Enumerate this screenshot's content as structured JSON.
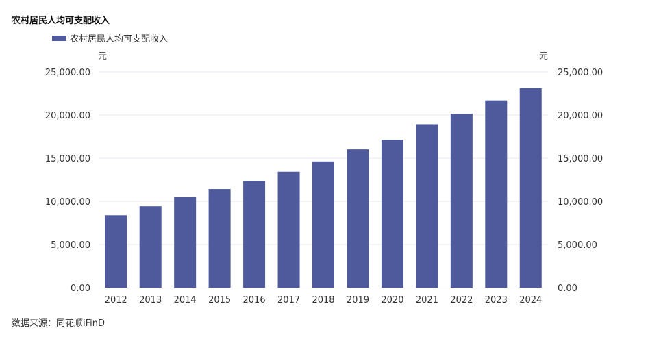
{
  "title": "农村居民人均可支配收入",
  "source": "数据来源：同花顺iFinD",
  "chart_data": {
    "type": "bar",
    "title": "农村居民人均可支配收入",
    "legend": [
      "农村居民人均可支配收入"
    ],
    "legend_position": "top-left",
    "ylabel_left": "元",
    "ylabel_right": "元",
    "categories": [
      "2012",
      "2013",
      "2014",
      "2015",
      "2016",
      "2017",
      "2018",
      "2019",
      "2020",
      "2021",
      "2022",
      "2023",
      "2024"
    ],
    "series": [
      {
        "name": "农村居民人均可支配收入",
        "color": "#4e5a9b",
        "values": [
          8389,
          9430,
          10489,
          11422,
          12363,
          13432,
          14617,
          16021,
          17131,
          18931,
          20133,
          21691,
          23119
        ]
      }
    ],
    "ylim": [
      0,
      25000
    ],
    "yticks": [
      0,
      5000,
      10000,
      15000,
      20000,
      25000
    ],
    "ytick_labels": [
      "0.00",
      "5,000.00",
      "10,000.00",
      "15,000.00",
      "20,000.00",
      "25,000.00"
    ],
    "grid": true
  }
}
